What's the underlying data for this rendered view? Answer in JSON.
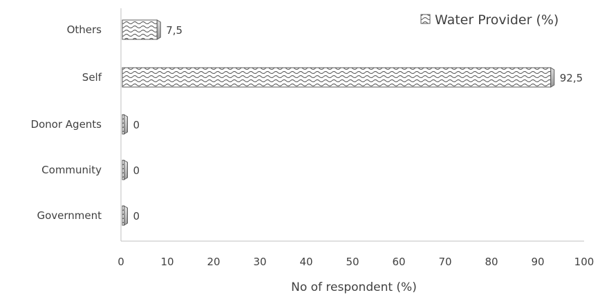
{
  "chart_data": {
    "type": "bar",
    "orientation": "horizontal",
    "categories": [
      "Others",
      "Self",
      "Donor Agents",
      "Community",
      "Government"
    ],
    "series": [
      {
        "name": "Water Provider (%)",
        "values": [
          7.5,
          92.5,
          0,
          0,
          0
        ],
        "labels": [
          "7,5",
          "92,5",
          "0",
          "0",
          "0"
        ]
      }
    ],
    "xlabel": "No of respondent (%)",
    "ylabel": "",
    "xlim": [
      0,
      100
    ],
    "xticks": [
      0,
      10,
      20,
      30,
      40,
      50,
      60,
      70,
      80,
      90,
      100
    ],
    "grid": false,
    "legend": "top-right",
    "bar_pattern": "wave-hatch",
    "colors": {
      "text": "#404040",
      "axis": "#bfbfbf",
      "bar_fill": "#ffffff",
      "bar_stroke": "#595959"
    }
  }
}
